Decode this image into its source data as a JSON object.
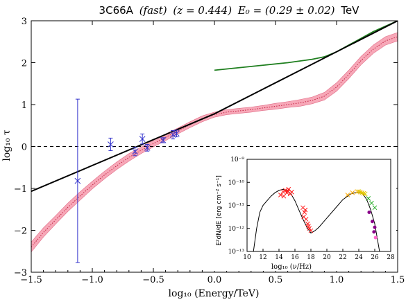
{
  "colors": {
    "black_line": "#000000",
    "green_line": "#1f7f1f",
    "band_fill": "#f7a8b8",
    "band_edge": "#e06a85",
    "dotted": "#c02040",
    "data_points": "#3333cc"
  },
  "chart_data": [
    {
      "type": "line",
      "title_parts": {
        "source": "3C66A",
        "mode": "(fast)",
        "redshift": "(z = 0.444)",
        "energy": "E₀ = (0.29 ± 0.02)",
        "unit": "TeV"
      },
      "xlabel": "log₁₀ (Energy/TeV)",
      "ylabel": "log₁₀ τ",
      "xlim": [
        -1.5,
        1.5
      ],
      "ylim": [
        -3,
        3
      ],
      "xticks": [
        -1.5,
        -1.0,
        -0.5,
        0.0,
        0.5,
        1.0,
        1.5
      ],
      "xtick_labels": [
        "−1.5",
        "−1.0",
        "−0.5",
        "0.0",
        "0.5",
        "1.0",
        "1.5"
      ],
      "yticks": [
        -3,
        -2,
        -1,
        0,
        1,
        2,
        3
      ],
      "ytick_labels": [
        "−3",
        "−2",
        "−1",
        "0",
        "1",
        "2",
        "3"
      ],
      "reference_line": {
        "y": 0,
        "style": "dashed"
      },
      "series": [
        {
          "style": "black-solid",
          "x": [
            -1.5,
            0.0,
            1.5
          ],
          "y": [
            -1.07,
            0.78,
            3.0
          ]
        },
        {
          "style": "green-solid",
          "x": [
            0.0,
            0.2,
            0.4,
            0.6,
            0.8,
            0.9,
            1.0,
            1.1,
            1.2,
            1.3,
            1.4,
            1.5
          ],
          "y": [
            1.82,
            1.88,
            1.94,
            2.0,
            2.08,
            2.14,
            2.26,
            2.42,
            2.58,
            2.74,
            2.87,
            3.0
          ]
        },
        {
          "style": "pink-band-with-dotted-center",
          "x": [
            -1.5,
            -1.4,
            -1.3,
            -1.2,
            -1.1,
            -1.0,
            -0.9,
            -0.8,
            -0.7,
            -0.6,
            -0.5,
            -0.4,
            -0.3,
            -0.2,
            -0.1,
            0.0,
            0.1,
            0.2,
            0.3,
            0.4,
            0.5,
            0.6,
            0.7,
            0.8,
            0.9,
            1.0,
            1.1,
            1.2,
            1.3,
            1.4,
            1.5
          ],
          "y": [
            -2.4,
            -2.05,
            -1.75,
            -1.45,
            -1.18,
            -0.92,
            -0.68,
            -0.46,
            -0.26,
            -0.09,
            0.07,
            0.22,
            0.37,
            0.52,
            0.66,
            0.76,
            0.82,
            0.85,
            0.88,
            0.92,
            0.96,
            1.0,
            1.04,
            1.1,
            1.2,
            1.42,
            1.72,
            2.05,
            2.32,
            2.52,
            2.62
          ],
          "band_halfwidth": [
            0.12,
            0.11,
            0.1,
            0.1,
            0.1,
            0.09,
            0.09,
            0.09,
            0.09,
            0.08,
            0.08,
            0.08,
            0.07,
            0.07,
            0.07,
            0.06,
            0.06,
            0.06,
            0.06,
            0.06,
            0.07,
            0.07,
            0.08,
            0.08,
            0.09,
            0.1,
            0.1,
            0.1,
            0.1,
            0.1,
            0.1
          ]
        }
      ],
      "data_points": {
        "x": [
          -1.12,
          -0.85,
          -0.65,
          -0.59,
          -0.55,
          -0.42,
          -0.34,
          -0.31
        ],
        "y": [
          -0.82,
          0.05,
          -0.12,
          0.18,
          -0.03,
          0.15,
          0.28,
          0.31
        ],
        "yerr": [
          1.95,
          0.15,
          0.1,
          0.12,
          0.08,
          0.06,
          0.1,
          0.08
        ],
        "xerr": [
          0.03,
          0.03,
          0.03,
          0.03,
          0.03,
          0.03,
          0.03,
          0.03
        ]
      }
    },
    {
      "type": "scatter",
      "xlabel": "log₁₀ (ν/Hz)",
      "ylabel": "E²dN/dE [erg cm⁻² s⁻¹]",
      "xlim": [
        10,
        28
      ],
      "ylim_log10": [
        -13,
        -9
      ],
      "xticks": [
        10,
        12,
        14,
        16,
        18,
        20,
        22,
        24,
        26,
        28
      ],
      "xtick_labels": [
        "10",
        "12",
        "14",
        "16",
        "18",
        "20",
        "22",
        "24",
        "26",
        "28"
      ],
      "ytick_labels": [
        "10⁻¹³",
        "10⁻¹²",
        "10⁻¹¹",
        "10⁻¹⁰",
        "10⁻⁹"
      ],
      "model_curve": {
        "x": [
          10.8,
          11.2,
          11.6,
          12.0,
          12.5,
          13.0,
          13.5,
          14.0,
          14.5,
          15.0,
          15.5,
          16.0,
          16.5,
          17.0,
          17.5,
          18.0,
          18.5,
          19.0,
          19.5,
          20.0,
          21.0,
          22.0,
          23.0,
          23.8,
          24.5,
          25.0,
          25.5,
          26.0,
          26.3,
          26.6
        ],
        "log_y": [
          -13.0,
          -12.0,
          -11.3,
          -11.0,
          -10.8,
          -10.6,
          -10.45,
          -10.35,
          -10.3,
          -10.35,
          -10.5,
          -10.8,
          -11.2,
          -11.6,
          -11.95,
          -12.2,
          -12.1,
          -11.95,
          -11.75,
          -11.55,
          -11.15,
          -10.75,
          -10.5,
          -10.43,
          -10.5,
          -10.75,
          -11.2,
          -11.8,
          -12.4,
          -13.0
        ]
      },
      "groups": [
        {
          "color": "#ff1a1a",
          "x": [
            14.2,
            14.5,
            14.8,
            15.0,
            15.2,
            15.4,
            15.6,
            14.6,
            15.1
          ],
          "log_y": [
            -10.55,
            -10.4,
            -10.35,
            -10.45,
            -10.3,
            -10.5,
            -10.42,
            -10.6,
            -10.38
          ]
        },
        {
          "color": "#ff1a1a",
          "x": [
            17.0,
            17.2,
            17.4,
            17.6,
            17.8,
            18.0,
            17.3,
            17.7,
            17.1
          ],
          "log_y": [
            -11.1,
            -11.3,
            -11.6,
            -11.8,
            -12.0,
            -12.1,
            -11.2,
            -11.9,
            -11.5
          ]
        },
        {
          "color": "#ffaa00",
          "x": [
            22.6,
            23.2,
            23.8,
            24.2,
            24.6
          ],
          "log_y": [
            -10.55,
            -10.45,
            -10.4,
            -10.42,
            -10.48
          ]
        },
        {
          "color": "#d4d400",
          "x": [
            24.0,
            24.4,
            24.8
          ],
          "log_y": [
            -10.4,
            -10.45,
            -10.5
          ]
        },
        {
          "color": "#22aa22",
          "x": [
            25.2,
            25.6,
            26.0
          ],
          "log_y": [
            -10.7,
            -10.9,
            -11.1
          ]
        },
        {
          "color": "#880088",
          "x": [
            25.3,
            25.7,
            26.0,
            25.9
          ],
          "log_y": [
            -11.3,
            -11.7,
            -11.95,
            -12.15
          ]
        },
        {
          "color": "#ff66cc",
          "x": [
            26.1
          ],
          "log_y": [
            -12.4
          ]
        }
      ]
    }
  ]
}
